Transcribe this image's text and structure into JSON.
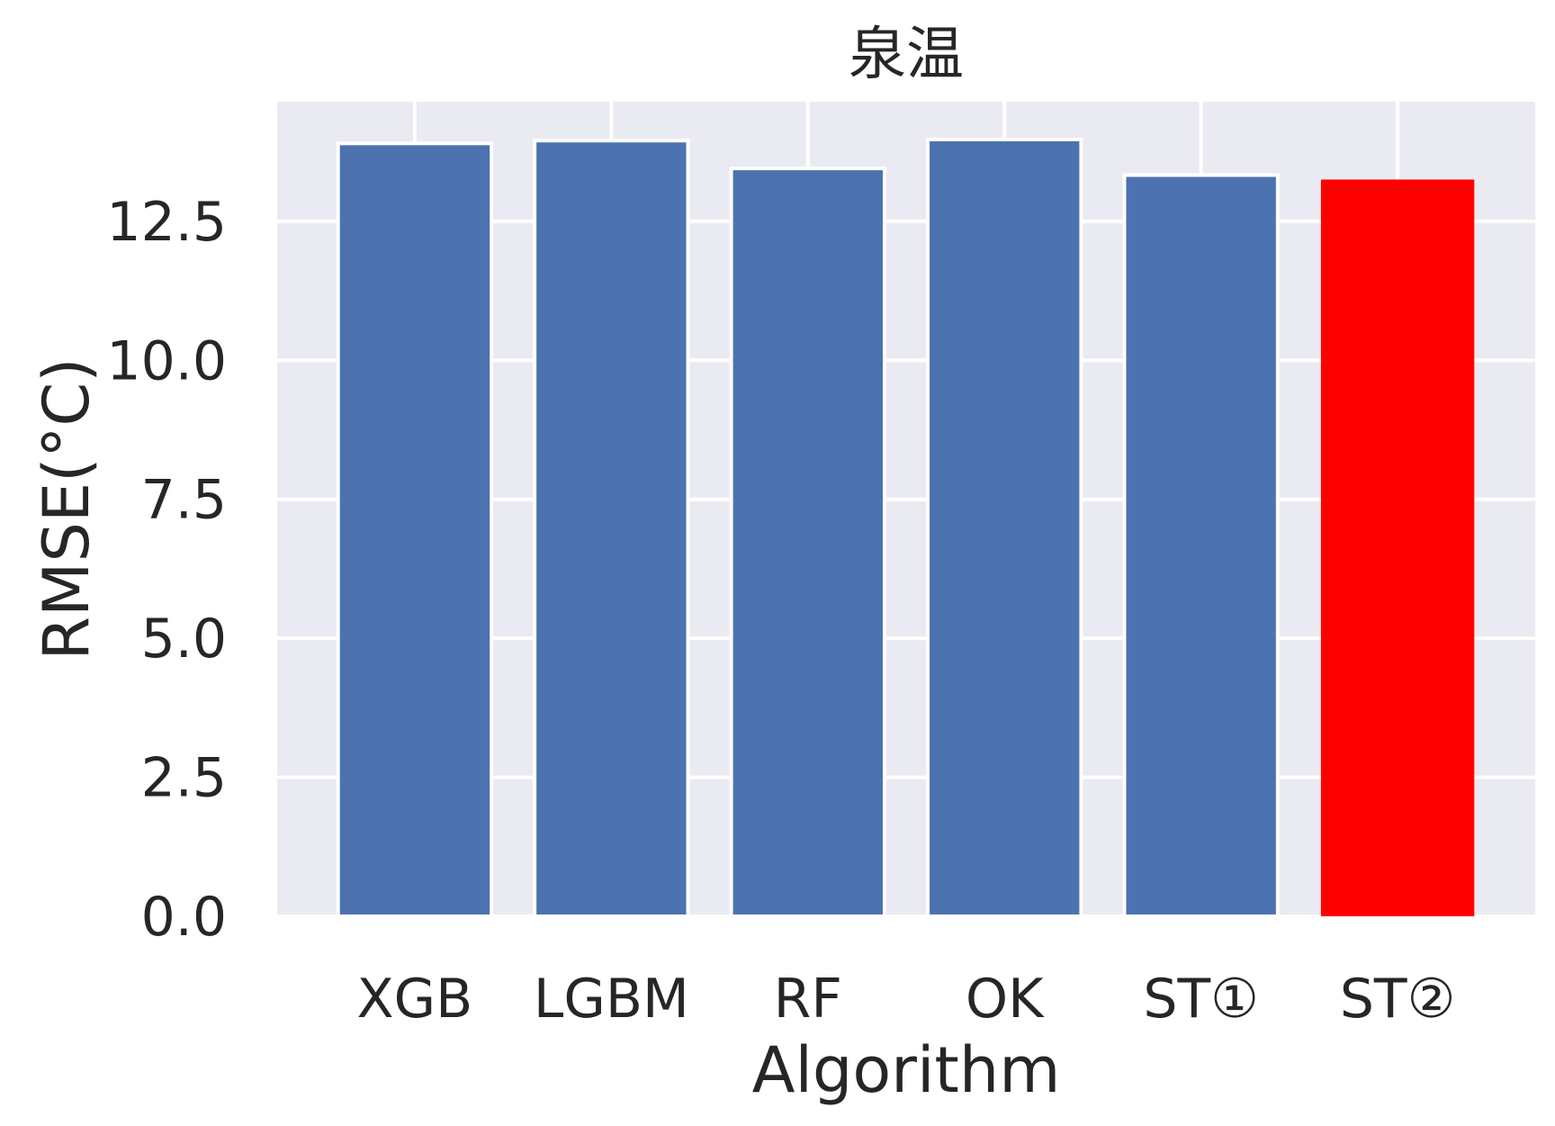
{
  "chart_data": {
    "type": "bar",
    "title": "泉温",
    "xlabel": "Algorithm",
    "ylabel": "RMSE(°C)",
    "categories": [
      "XGB",
      "LGBM",
      "RF",
      "OK",
      "ST①",
      "ST②"
    ],
    "values": [
      13.9,
      13.95,
      13.45,
      13.97,
      13.33,
      13.25
    ],
    "ylim": [
      0,
      14.65
    ],
    "yticks": [
      0.0,
      2.5,
      5.0,
      7.5,
      10.0,
      12.5
    ],
    "ytick_labels": [
      "0.0",
      "2.5",
      "5.0",
      "7.5",
      "10.0",
      "12.5"
    ],
    "grid": true,
    "colors": {
      "plot_background": "#eaeaf2",
      "grid": "#ffffff",
      "bar_default": "#4c72b0",
      "bar_highlight": "#ff0000",
      "text": "#262626"
    },
    "highlight_category": "ST②"
  }
}
